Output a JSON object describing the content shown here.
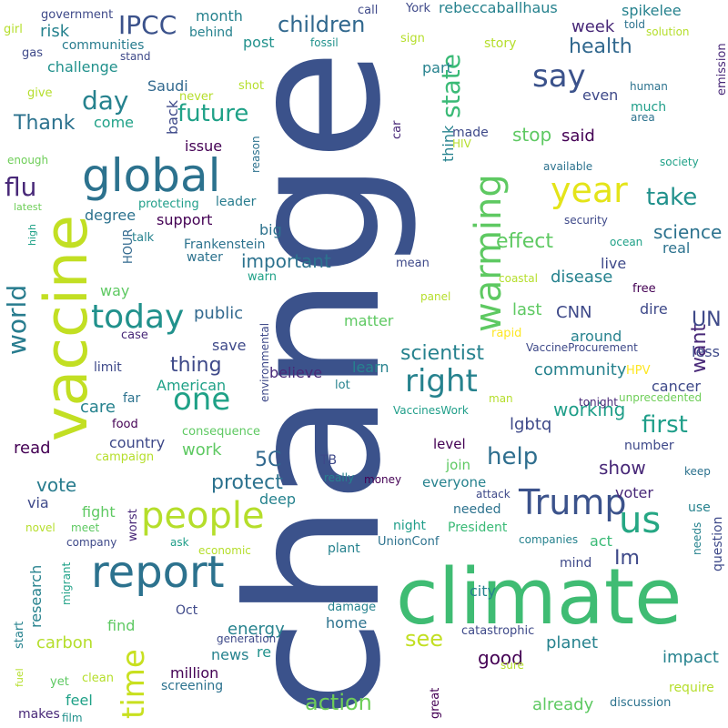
{
  "words": [
    "change",
    "climate",
    "vaccine",
    "global",
    "report",
    "people",
    "Trump",
    "us",
    "year",
    "warming",
    "today",
    "right",
    "say",
    "one",
    "time",
    "IPCC",
    "children",
    "day",
    "future",
    "flu",
    "world",
    "state",
    "take",
    "help",
    "first",
    "see",
    "action",
    "effect",
    "science",
    "scientist",
    "important",
    "thing",
    "health",
    "Thank",
    "want",
    "UN",
    "5C",
    "protect",
    "good",
    "working",
    "lgbtq",
    "community",
    "Im",
    "show",
    "impact",
    "planet",
    "already",
    "energy",
    "carbon",
    "vote",
    "read",
    "work",
    "country",
    "care",
    "American",
    "public",
    "save",
    "believe",
    "learn",
    "matter",
    "last",
    "CNN",
    "disease",
    "live",
    "real",
    "dire",
    "around",
    "cancer",
    "less",
    "stop",
    "said",
    "even",
    "week",
    "spikelee",
    "rebeccaballhaus",
    "month",
    "government",
    "risk",
    "communities",
    "challenge",
    "behind",
    "post",
    "Saudi",
    "come",
    "back",
    "issue",
    "support",
    "degree",
    "leader",
    "protecting",
    "Frankenstein",
    "water",
    "big",
    "warn",
    "mean",
    "talk",
    "HOUR",
    "way",
    "case",
    "limit",
    "far",
    "food",
    "consequence",
    "campaign",
    "via",
    "fight",
    "worst",
    "deep",
    "novel",
    "meet",
    "company",
    "ask",
    "economic",
    "research",
    "migrant",
    "Oct",
    "find",
    "start",
    "generation",
    "news",
    "re",
    "million",
    "screening",
    "yet",
    "clean",
    "fuel",
    "makes",
    "feel",
    "film",
    "TB",
    "really",
    "money",
    "everyone",
    "join",
    "level",
    "attack",
    "needed",
    "night",
    "President",
    "UnionConf",
    "plant",
    "companies",
    "act",
    "mind",
    "city",
    "damage",
    "home",
    "catastrophic",
    "sure",
    "great",
    "require",
    "discussion",
    "voter",
    "number",
    "keep",
    "use",
    "needs",
    "question",
    "tonight",
    "unprecedented",
    "HPV",
    "VaccineProcurement",
    "rapid",
    "panel",
    "coastal",
    "free",
    "ocean",
    "security",
    "available",
    "society",
    "HIV",
    "made",
    "think",
    "car",
    "part",
    "story",
    "sign",
    "York",
    "call",
    "fossil",
    "told",
    "solution",
    "emission",
    "human",
    "much",
    "area",
    "shot",
    "never",
    "reason",
    "environmental",
    "lot",
    "man",
    "VaccinesWork",
    "high",
    "latest",
    "enough",
    "give",
    "gas",
    "stand",
    "girl"
  ]
}
